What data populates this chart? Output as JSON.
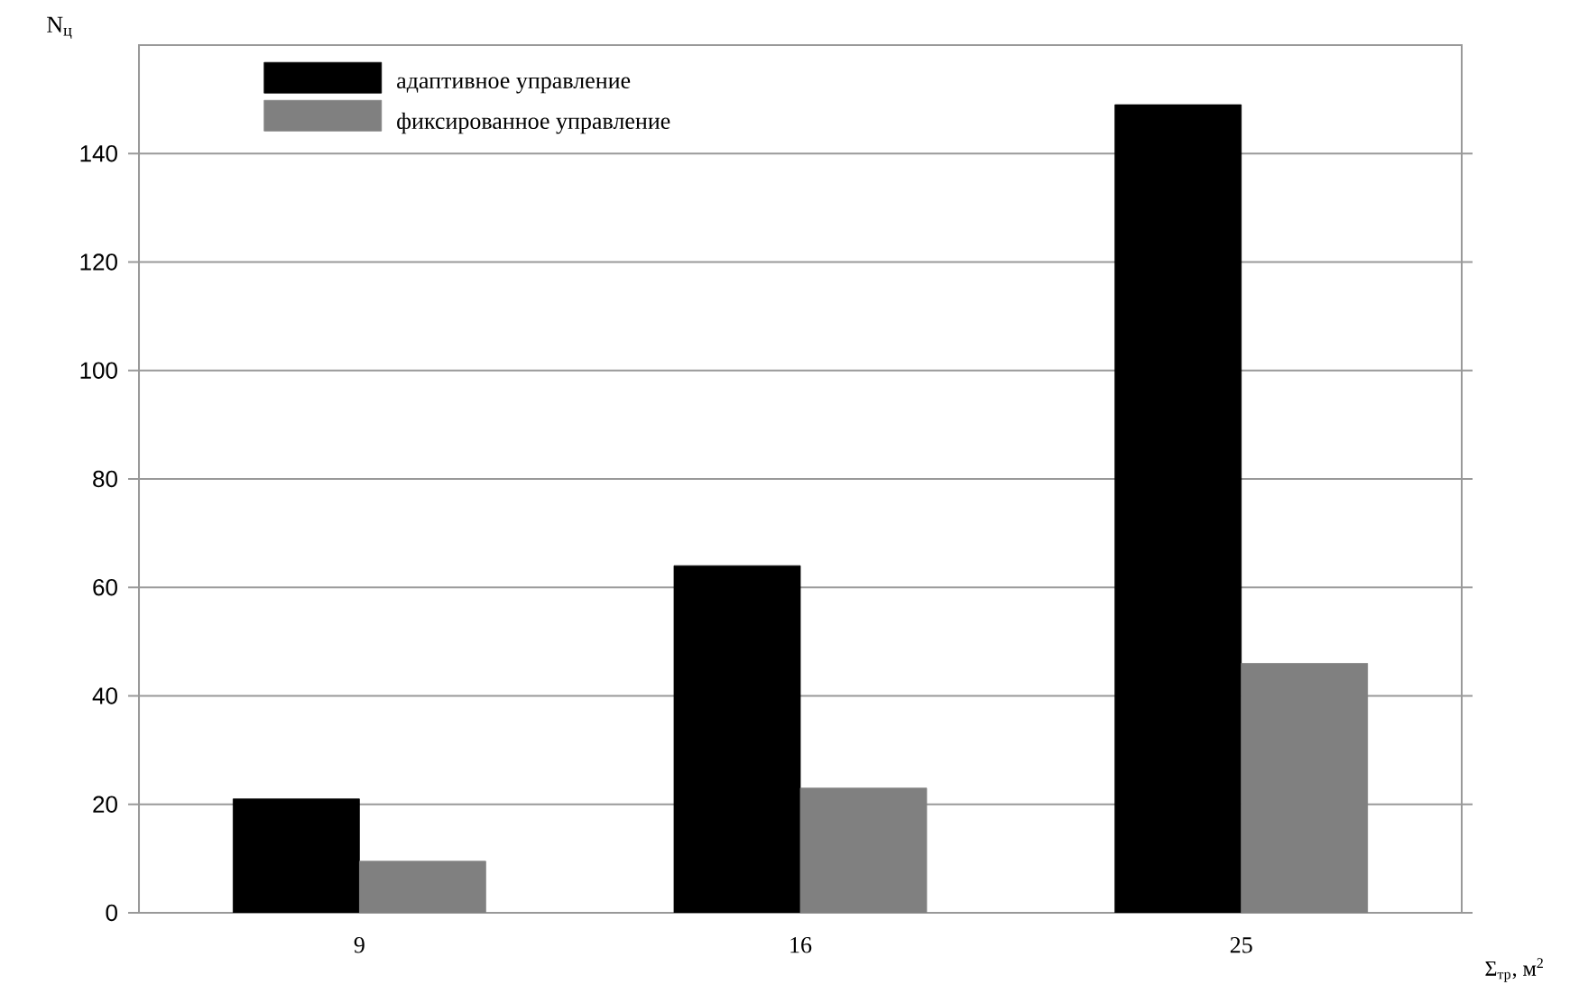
{
  "chart_data": {
    "type": "bar",
    "categories": [
      "9",
      "16",
      "25"
    ],
    "series": [
      {
        "name": "адаптивное управление",
        "color": "#000000",
        "values": [
          21,
          64,
          149
        ]
      },
      {
        "name": "фиксированное управление",
        "color": "#808080",
        "values": [
          9.5,
          23,
          46
        ]
      }
    ],
    "xlabel": "Σ$_{тр}$, м$^{2}$",
    "ylabel": "N$_{ц}$",
    "ylim": [
      0,
      160
    ],
    "yticks": [
      0,
      20,
      40,
      60,
      80,
      100,
      120,
      140
    ],
    "grid": "y",
    "legend": "top left"
  }
}
